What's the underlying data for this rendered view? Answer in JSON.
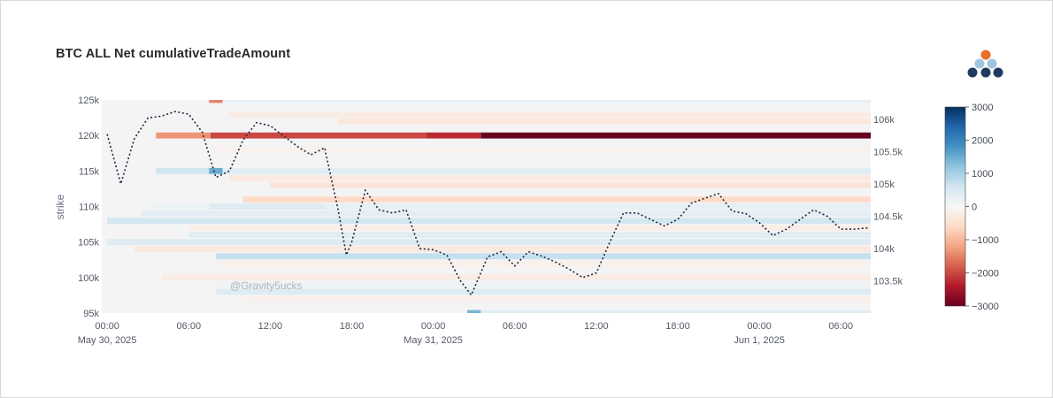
{
  "chart_data": {
    "type": "heatmap",
    "title": "BTC ALL Net cumulativeTradeAmount",
    "ylabel": "strike",
    "watermark": "@Gravity5ucks",
    "x_ticks": [
      {
        "hours": 0,
        "label": "00:00",
        "sublabel": "May 30, 2025"
      },
      {
        "hours": 6,
        "label": "06:00",
        "sublabel": ""
      },
      {
        "hours": 12,
        "label": "12:00",
        "sublabel": ""
      },
      {
        "hours": 18,
        "label": "18:00",
        "sublabel": ""
      },
      {
        "hours": 24,
        "label": "00:00",
        "sublabel": "May 31, 2025"
      },
      {
        "hours": 30,
        "label": "06:00",
        "sublabel": ""
      },
      {
        "hours": 36,
        "label": "12:00",
        "sublabel": ""
      },
      {
        "hours": 42,
        "label": "18:00",
        "sublabel": ""
      },
      {
        "hours": 48,
        "label": "00:00",
        "sublabel": "Jun 1, 2025"
      },
      {
        "hours": 54,
        "label": "06:00",
        "sublabel": ""
      }
    ],
    "x_range_hours": [
      -0.4,
      56.2
    ],
    "y_left": {
      "range": [
        95000,
        125000
      ],
      "ticks": [
        95000,
        100000,
        105000,
        110000,
        115000,
        120000,
        125000
      ],
      "tick_labels": [
        "95k",
        "100k",
        "105k",
        "110k",
        "115k",
        "120k",
        "125k"
      ]
    },
    "y_right": {
      "range": [
        103000,
        106300
      ],
      "ticks": [
        103500,
        104000,
        104500,
        105000,
        105500,
        106000
      ],
      "tick_labels": [
        "103.5k",
        "104k",
        "104.5k",
        "105k",
        "105.5k",
        "106k"
      ]
    },
    "colorbar": {
      "range": [
        -3000,
        3000
      ],
      "ticks": [
        3000,
        2000,
        1000,
        0,
        -1000,
        -2000,
        -3000
      ],
      "tick_labels": [
        "3000",
        "2000",
        "1000",
        "0",
        "−1000",
        "−2000",
        "−3000"
      ],
      "colorscale": [
        "#67001f",
        "#b2182b",
        "#d6604d",
        "#f4a582",
        "#fddbc7",
        "#f7f7f7",
        "#d1e5f0",
        "#92c5de",
        "#4393c3",
        "#2166ac",
        "#053061"
      ]
    },
    "heatmap_bands": [
      {
        "strike": 125000,
        "segments": [
          [
            7.5,
            8.5,
            -1500
          ],
          [
            8.5,
            56.2,
            250
          ]
        ]
      },
      {
        "strike": 123000,
        "segments": [
          [
            9,
            56.2,
            -250
          ]
        ]
      },
      {
        "strike": 122000,
        "segments": [
          [
            17,
            56.2,
            -350
          ]
        ]
      },
      {
        "strike": 120000,
        "segments": [
          [
            3.6,
            7.6,
            -1350
          ],
          [
            7.6,
            23.5,
            -2000
          ],
          [
            23.5,
            27.5,
            -2250
          ],
          [
            27.5,
            56.2,
            -3000
          ]
        ]
      },
      {
        "strike": 118000,
        "segments": [
          [
            8,
            56.2,
            -120
          ]
        ]
      },
      {
        "strike": 115000,
        "segments": [
          [
            3.6,
            7.5,
            600
          ],
          [
            7.5,
            8.5,
            1500
          ],
          [
            8.5,
            56.2,
            350
          ]
        ]
      },
      {
        "strike": 114000,
        "segments": [
          [
            9,
            56.2,
            -300
          ]
        ]
      },
      {
        "strike": 113000,
        "segments": [
          [
            12,
            56.2,
            -400
          ]
        ]
      },
      {
        "strike": 111000,
        "segments": [
          [
            10,
            56.2,
            -600
          ]
        ]
      },
      {
        "strike": 110000,
        "segments": [
          [
            3,
            7.5,
            150
          ],
          [
            7.5,
            16,
            400
          ],
          [
            16,
            56.2,
            250
          ]
        ]
      },
      {
        "strike": 109000,
        "segments": [
          [
            2.5,
            56.2,
            300
          ]
        ]
      },
      {
        "strike": 108000,
        "segments": [
          [
            0,
            56.2,
            550
          ]
        ]
      },
      {
        "strike": 107000,
        "segments": [
          [
            6,
            56.2,
            -200
          ]
        ]
      },
      {
        "strike": 106000,
        "segments": [
          [
            6,
            56.2,
            350
          ]
        ]
      },
      {
        "strike": 105000,
        "segments": [
          [
            0,
            56.2,
            400
          ]
        ]
      },
      {
        "strike": 104000,
        "segments": [
          [
            2,
            56.2,
            -300
          ]
        ]
      },
      {
        "strike": 103000,
        "segments": [
          [
            8,
            56.2,
            700
          ]
        ]
      },
      {
        "strike": 102000,
        "segments": [
          [
            8,
            56.2,
            -150
          ]
        ]
      },
      {
        "strike": 100000,
        "segments": [
          [
            4,
            56.2,
            -250
          ]
        ]
      },
      {
        "strike": 99000,
        "segments": [
          [
            8,
            56.2,
            150
          ]
        ]
      },
      {
        "strike": 98000,
        "segments": [
          [
            8,
            56.2,
            400
          ]
        ]
      },
      {
        "strike": 97000,
        "segments": [
          [
            10,
            56.2,
            -150
          ]
        ]
      },
      {
        "strike": 95000,
        "segments": [
          [
            26.5,
            27.5,
            1400
          ],
          [
            27.5,
            56.2,
            350
          ]
        ]
      }
    ],
    "price_line": {
      "style": "dotted",
      "color": "#1a2740",
      "x": [
        0,
        1,
        2,
        3,
        4,
        5,
        6,
        7,
        8,
        9,
        10,
        11,
        12,
        13,
        14,
        15,
        16,
        17,
        17.6,
        18,
        19,
        20,
        21,
        22,
        23,
        24,
        25,
        26,
        26.8,
        28,
        29,
        30,
        31,
        32,
        33,
        34,
        35,
        36,
        37,
        38,
        39,
        40,
        41,
        42,
        43,
        44,
        45,
        46,
        47,
        48,
        49,
        50,
        51,
        52,
        53,
        54,
        55,
        56
      ],
      "y": [
        105770,
        105000,
        105700,
        106020,
        106050,
        106120,
        106080,
        105800,
        105100,
        105200,
        105680,
        105950,
        105900,
        105740,
        105580,
        105450,
        105560,
        104600,
        103900,
        104100,
        104900,
        104600,
        104550,
        104600,
        104000,
        103980,
        103900,
        103500,
        103280,
        103870,
        103950,
        103730,
        103950,
        103880,
        103790,
        103680,
        103550,
        103620,
        104100,
        104550,
        104550,
        104450,
        104350,
        104450,
        104700,
        104780,
        104850,
        104580,
        104540,
        104400,
        104200,
        104300,
        104450,
        104600,
        104500,
        104300,
        104300,
        104320
      ]
    }
  },
  "logo": {
    "name": "logo-dots-icon",
    "colors": [
      "#e8702a",
      "#9fc6e0",
      "#1f3a5f"
    ]
  }
}
